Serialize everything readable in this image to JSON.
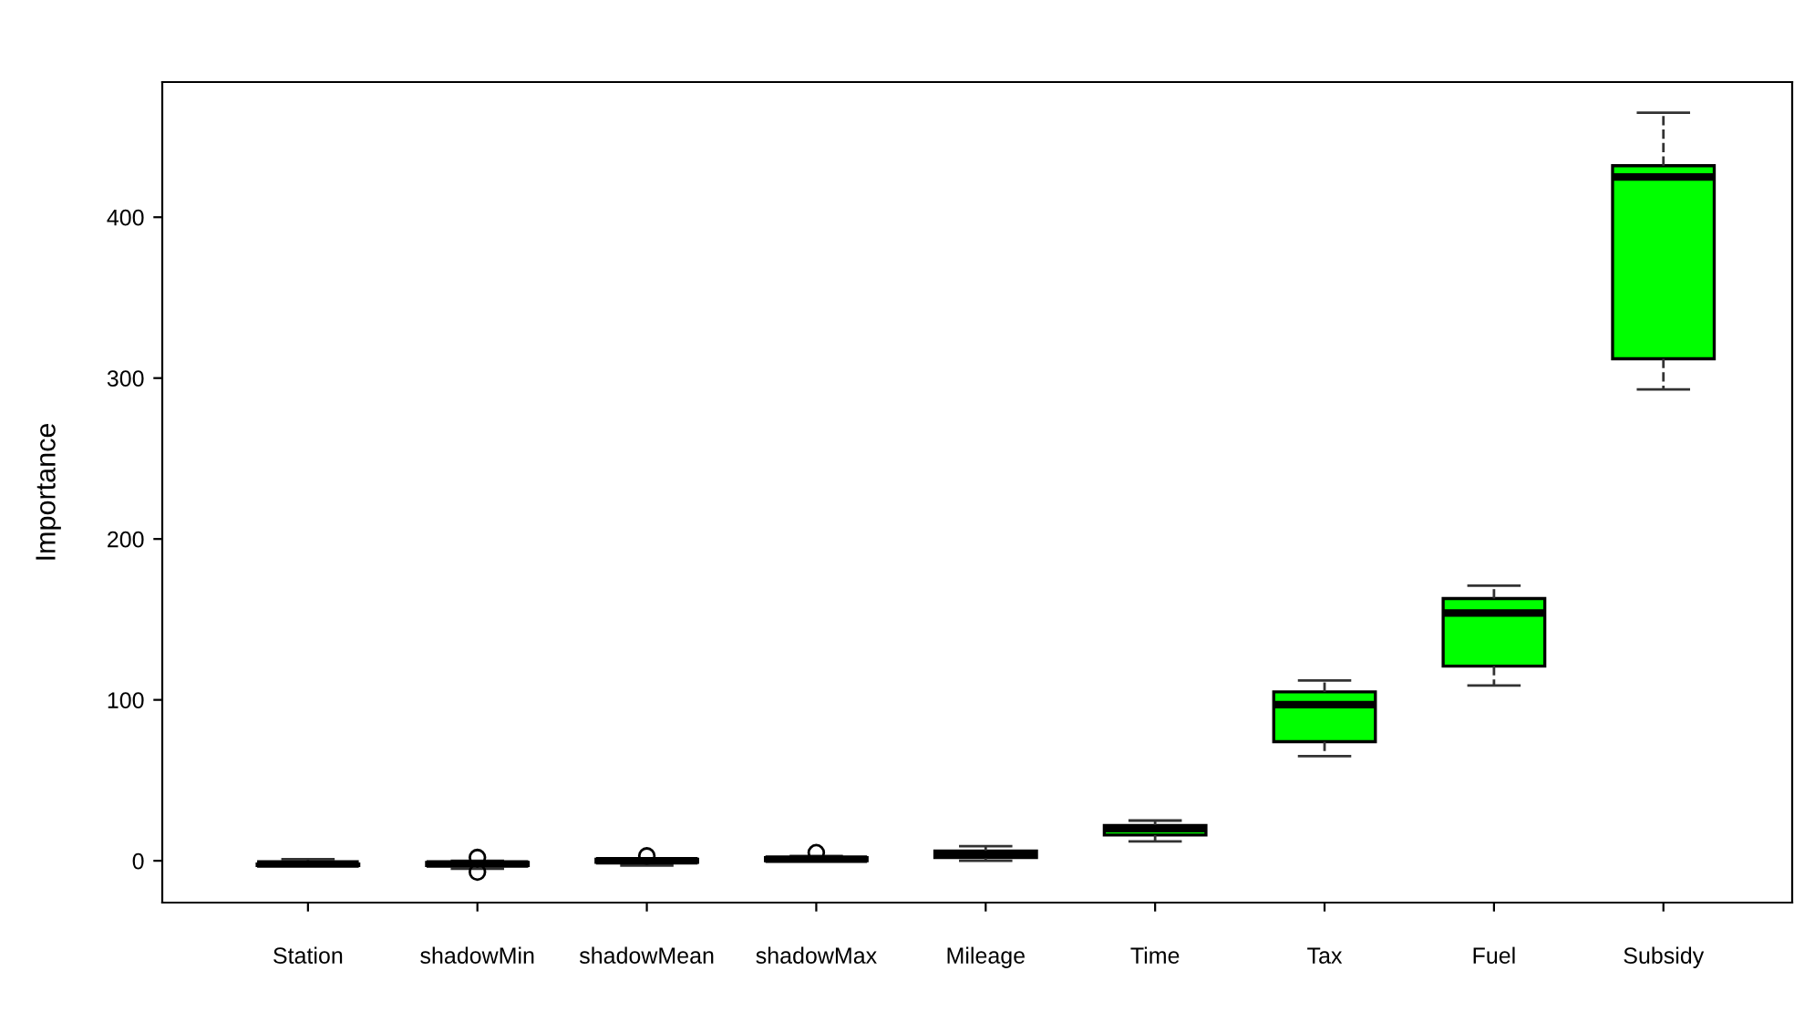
{
  "chart_data": {
    "type": "box",
    "ylabel": "Importance",
    "categories": [
      "Station",
      "shadowMin",
      "shadowMean",
      "shadowMax",
      "Mileage",
      "Time",
      "Tax",
      "Fuel",
      "Subsidy"
    ],
    "boxes": [
      {
        "low": -3,
        "q1": -3,
        "median": -2,
        "q3": -2,
        "high": 1
      },
      {
        "low": -5,
        "q1": -3,
        "median": -2,
        "q3": -1,
        "high": 0,
        "outliers": [
          2,
          -7
        ]
      },
      {
        "low": -3,
        "q1": -1,
        "median": 0,
        "q3": 1,
        "high": 1,
        "outliers": [
          3
        ]
      },
      {
        "low": 0,
        "q1": 0,
        "median": 1,
        "q3": 2,
        "high": 3,
        "outliers": [
          5
        ]
      },
      {
        "low": 0,
        "q1": 2,
        "median": 4,
        "q3": 6,
        "high": 9
      },
      {
        "low": 12,
        "q1": 16,
        "median": 20,
        "q3": 22,
        "high": 25
      },
      {
        "low": 65,
        "q1": 74,
        "median": 97,
        "q3": 105,
        "high": 112
      },
      {
        "low": 109,
        "q1": 121,
        "median": 154,
        "q3": 163,
        "high": 171
      },
      {
        "low": 293,
        "q1": 312,
        "median": 425,
        "q3": 432,
        "high": 465
      }
    ],
    "colors": [
      "#ff0000",
      "#0000ff",
      "#0000ff",
      "#0000ff",
      "#00ff00",
      "#00ff00",
      "#00ff00",
      "#00ff00",
      "#00ff00"
    ],
    "ylim": [
      -26,
      484
    ],
    "yticks": [
      0,
      100,
      200,
      300,
      400
    ],
    "grid": false,
    "line_style": "dashed"
  }
}
